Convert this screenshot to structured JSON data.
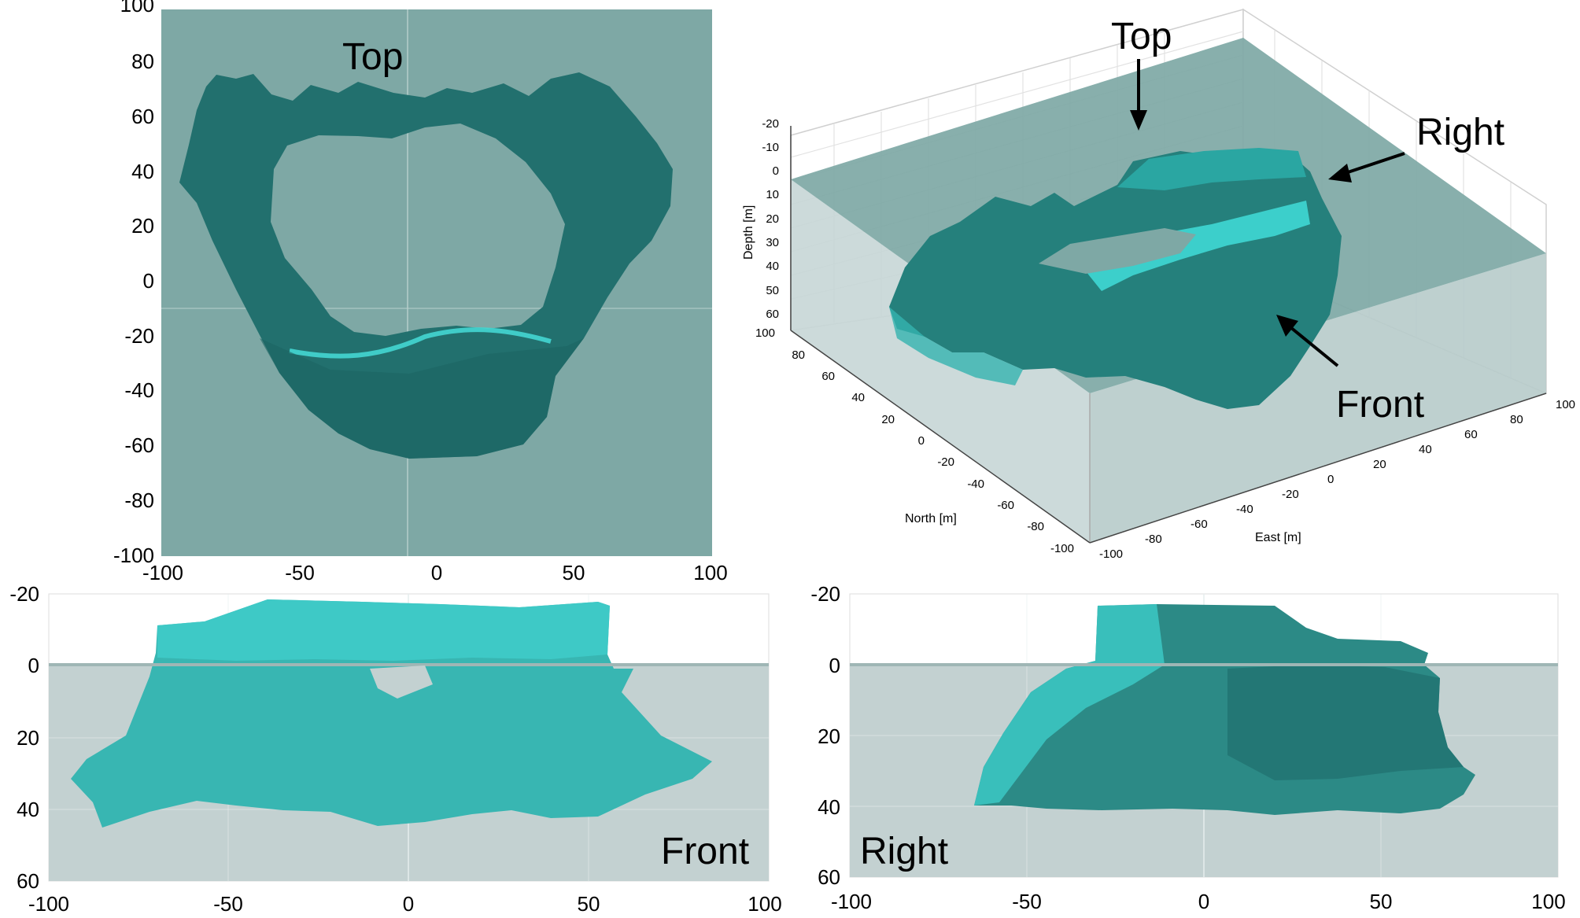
{
  "panels": {
    "top": {
      "label": "Top",
      "x_ticks": [
        "-100",
        "-50",
        "0",
        "50",
        "100"
      ],
      "y_ticks": [
        "100",
        "80",
        "60",
        "40",
        "20",
        "0",
        "-20",
        "-40",
        "-60",
        "-80",
        "-100"
      ]
    },
    "perspective": {
      "labels": {
        "top": "Top",
        "right": "Right",
        "front": "Front"
      },
      "depth_label": "Depth [m]",
      "north_label": "North [m]",
      "east_label": "East [m]",
      "depth_ticks": [
        "-20",
        "-10",
        "0",
        "10",
        "20",
        "30",
        "40",
        "50",
        "60"
      ],
      "north_ticks": [
        "100",
        "80",
        "60",
        "40",
        "20",
        "0",
        "-20",
        "-40",
        "-60",
        "-80",
        "-100"
      ],
      "east_ticks": [
        "-100",
        "-80",
        "-60",
        "-40",
        "-20",
        "0",
        "20",
        "40",
        "60",
        "80",
        "100"
      ]
    },
    "front": {
      "label": "Front",
      "x_ticks": [
        "-100",
        "-50",
        "0",
        "50",
        "100"
      ],
      "y_ticks": [
        "-20",
        "0",
        "20",
        "40",
        "60"
      ]
    },
    "right": {
      "label": "Right",
      "x_ticks": [
        "-100",
        "-50",
        "0",
        "50",
        "100"
      ],
      "y_ticks": [
        "-20",
        "0",
        "20",
        "40",
        "60"
      ]
    }
  },
  "colors": {
    "sea_plan": "#7ea8a5",
    "sea_section": "#c3d1d1",
    "sea_3d": "#a9c1bf",
    "structure_dark": "#1f6f6d",
    "structure_mid": "#2e8c88",
    "structure_light": "#44d6d2",
    "structure_cyan": "#38c2bf"
  }
}
